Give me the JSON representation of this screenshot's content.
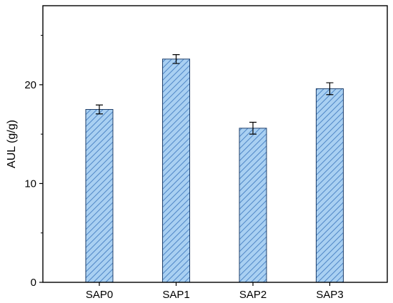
{
  "chart_data": {
    "type": "bar",
    "categories": [
      "SAP0",
      "SAP1",
      "SAP2",
      "SAP3"
    ],
    "values": [
      17.5,
      22.6,
      15.6,
      19.6
    ],
    "errors": [
      0.45,
      0.45,
      0.6,
      0.6
    ],
    "title": "",
    "xlabel": "",
    "ylabel": "AUL (g/g)",
    "ylim": [
      0,
      28
    ],
    "yticks": [
      0,
      10,
      20
    ],
    "grid": false,
    "bar_fill": "#a9d0f2",
    "bar_hatch": "#4f86c6",
    "bar_edge": "#1f3f6b"
  }
}
